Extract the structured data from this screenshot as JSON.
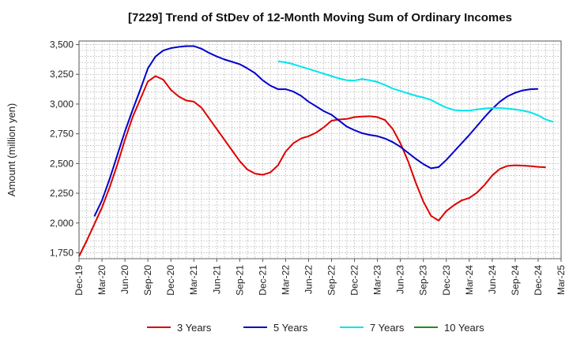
{
  "chart_data": {
    "type": "line",
    "title": "[7229]  Trend of StDev of 12-Month Moving Sum of Ordinary Incomes",
    "xlabel": "",
    "ylabel": "Amount (million yen)",
    "ylim": [
      1700,
      3530
    ],
    "yticks": [
      1750,
      2000,
      2250,
      2500,
      2750,
      3000,
      3250,
      3500
    ],
    "ytick_labels": [
      "1,750",
      "2,000",
      "2,250",
      "2,500",
      "2,750",
      "3,000",
      "3,250",
      "3,500"
    ],
    "x_start": "Dec-19",
    "x_end": "Mar-25",
    "xtick_labels": [
      "Dec-19",
      "Mar-20",
      "Jun-20",
      "Sep-20",
      "Dec-20",
      "Mar-21",
      "Jun-21",
      "Sep-21",
      "Dec-21",
      "Mar-22",
      "Jun-22",
      "Sep-22",
      "Dec-22",
      "Mar-23",
      "Jun-23",
      "Sep-23",
      "Dec-23",
      "Mar-24",
      "Jun-24",
      "Sep-24",
      "Dec-24",
      "Mar-25"
    ],
    "grid": true,
    "legend_position": "bottom",
    "series": [
      {
        "name": "3 Years",
        "color": "#dd0000",
        "start": "Dec-19",
        "values": [
          1720,
          1850,
          1990,
          2130,
          2300,
          2490,
          2700,
          2890,
          3040,
          3190,
          3235,
          3205,
          3120,
          3065,
          3030,
          3020,
          2970,
          2880,
          2790,
          2700,
          2610,
          2520,
          2450,
          2415,
          2405,
          2425,
          2485,
          2600,
          2670,
          2710,
          2730,
          2760,
          2805,
          2860,
          2870,
          2875,
          2890,
          2895,
          2898,
          2890,
          2865,
          2790,
          2670,
          2520,
          2340,
          2180,
          2060,
          2020,
          2100,
          2150,
          2190,
          2210,
          2255,
          2320,
          2400,
          2455,
          2480,
          2485,
          2482,
          2478,
          2472,
          2468
        ]
      },
      {
        "name": "5 Years",
        "color": "#0000cc",
        "start": "Feb-20",
        "values": [
          2055,
          2190,
          2370,
          2570,
          2770,
          2950,
          3120,
          3300,
          3400,
          3450,
          3470,
          3480,
          3487,
          3487,
          3465,
          3430,
          3400,
          3375,
          3355,
          3335,
          3300,
          3260,
          3200,
          3155,
          3125,
          3125,
          3105,
          3070,
          3020,
          2980,
          2940,
          2910,
          2860,
          2810,
          2780,
          2755,
          2740,
          2730,
          2710,
          2680,
          2640,
          2590,
          2540,
          2495,
          2460,
          2470,
          2530,
          2600,
          2670,
          2740,
          2815,
          2890,
          2960,
          3020,
          3065,
          3095,
          3115,
          3125,
          3127
        ]
      },
      {
        "name": "7 Years",
        "color": "#00e5ee",
        "start": "Feb-22",
        "values": [
          3360,
          3350,
          3335,
          3315,
          3295,
          3275,
          3255,
          3235,
          3215,
          3200,
          3198,
          3210,
          3200,
          3185,
          3160,
          3130,
          3110,
          3090,
          3070,
          3055,
          3035,
          3000,
          2970,
          2950,
          2945,
          2945,
          2955,
          2962,
          2968,
          2966,
          2962,
          2955,
          2945,
          2930,
          2905,
          2870,
          2850
        ]
      },
      {
        "name": "10 Years",
        "color": "#228b22",
        "start": "",
        "values": []
      }
    ]
  }
}
